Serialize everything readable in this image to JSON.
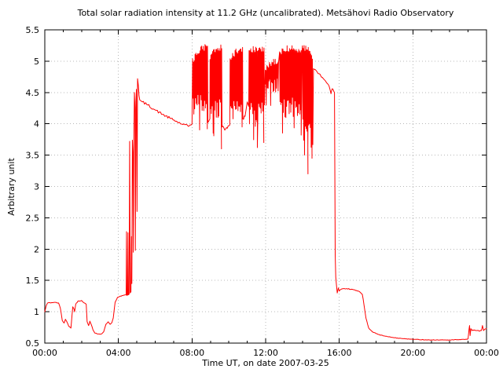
{
  "title": "Total solar radiation intensity at 11.2 GHz (uncalibrated). Metsähovi Radio Observatory",
  "xlabel": "Time UT, on date 2007-03-25",
  "ylabel": "Arbitrary unit",
  "colors": {
    "line": "#ff0000",
    "axis": "#000000",
    "grid": "#b8b8b8",
    "background": "#ffffff",
    "text": "#000000"
  },
  "chart_data": {
    "type": "line",
    "title": "Total solar radiation intensity at 11.2 GHz (uncalibrated). Metsähovi Radio Observatory",
    "xlabel": "Time UT, on date 2007-03-25",
    "ylabel": "Arbitrary unit",
    "grid": true,
    "legend": false,
    "xlim_hours": [
      0,
      24
    ],
    "ylim": [
      0.5,
      5.5
    ],
    "x_ticks": [
      {
        "t": 0,
        "label": "00:00"
      },
      {
        "t": 4,
        "label": "04:00"
      },
      {
        "t": 8,
        "label": "08:00"
      },
      {
        "t": 12,
        "label": "12:00"
      },
      {
        "t": 16,
        "label": "16:00"
      },
      {
        "t": 20,
        "label": "20:00"
      },
      {
        "t": 24,
        "label": "00:00"
      }
    ],
    "x_minor_every_hours": 1,
    "y_ticks": [
      {
        "v": 0.5,
        "label": "0.5"
      },
      {
        "v": 1,
        "label": "1"
      },
      {
        "v": 1.5,
        "label": "1.5"
      },
      {
        "v": 2,
        "label": "2"
      },
      {
        "v": 2.5,
        "label": "2.5"
      },
      {
        "v": 3,
        "label": "3"
      },
      {
        "v": 3.5,
        "label": "3.5"
      },
      {
        "v": 4,
        "label": "4"
      },
      {
        "v": 4.5,
        "label": "4.5"
      },
      {
        "v": 5,
        "label": "5"
      },
      {
        "v": 5.5,
        "label": "5.5"
      }
    ],
    "series_name": "solar radiation intensity",
    "segments": [
      {
        "type": "line",
        "noise": 0.006,
        "pts": [
          [
            0,
            1.0
          ],
          [
            0.08,
            1.1
          ],
          [
            0.15,
            1.14
          ],
          [
            0.5,
            1.15
          ],
          [
            0.75,
            1.14
          ],
          [
            0.85,
            1.05
          ],
          [
            0.95,
            0.86
          ],
          [
            1.05,
            0.82
          ],
          [
            1.12,
            0.88
          ],
          [
            1.2,
            0.84
          ],
          [
            1.3,
            0.77
          ],
          [
            1.42,
            0.74
          ],
          [
            1.48,
            0.95
          ],
          [
            1.52,
            1.08
          ],
          [
            1.58,
            1.05
          ],
          [
            1.62,
            1.0
          ],
          [
            1.68,
            1.12
          ],
          [
            1.8,
            1.17
          ],
          [
            2.0,
            1.18
          ],
          [
            2.15,
            1.14
          ],
          [
            2.25,
            1.12
          ],
          [
            2.3,
            0.84
          ],
          [
            2.38,
            0.78
          ],
          [
            2.45,
            0.85
          ],
          [
            2.52,
            0.8
          ],
          [
            2.62,
            0.71
          ],
          [
            2.72,
            0.66
          ],
          [
            2.9,
            0.645
          ],
          [
            3.1,
            0.65
          ],
          [
            3.2,
            0.68
          ],
          [
            3.32,
            0.8
          ],
          [
            3.45,
            0.84
          ],
          [
            3.55,
            0.8
          ],
          [
            3.65,
            0.83
          ],
          [
            3.72,
            0.9
          ],
          [
            3.82,
            1.15
          ],
          [
            3.95,
            1.23
          ],
          [
            4.1,
            1.25
          ],
          [
            4.25,
            1.26
          ],
          [
            4.42,
            1.27
          ]
        ]
      },
      {
        "type": "line",
        "noise": 0,
        "pts": [
          [
            4.44,
            2.28
          ],
          [
            4.46,
            1.26
          ],
          [
            4.5,
            1.27
          ],
          [
            4.52,
            2.26
          ],
          [
            4.54,
            1.27
          ],
          [
            4.58,
            1.28
          ],
          [
            4.61,
            3.72
          ],
          [
            4.64,
            1.3
          ],
          [
            4.68,
            1.32
          ],
          [
            4.71,
            2.2
          ],
          [
            4.73,
            1.45
          ],
          [
            4.76,
            3.74
          ],
          [
            4.79,
            3.55
          ],
          [
            4.81,
            1.95
          ],
          [
            4.84,
            3.8
          ],
          [
            4.87,
            4.5
          ],
          [
            4.9,
            4.25
          ],
          [
            4.92,
            1.98
          ],
          [
            4.95,
            4.35
          ],
          [
            4.98,
            4.55
          ],
          [
            5.01,
            2.6
          ],
          [
            5.04,
            4.72
          ],
          [
            5.08,
            4.62
          ],
          [
            5.12,
            4.45
          ],
          [
            5.16,
            4.38
          ]
        ]
      },
      {
        "type": "line",
        "noise": 0.02,
        "pts": [
          [
            5.3,
            4.35
          ],
          [
            5.6,
            4.3
          ],
          [
            6.0,
            4.22
          ],
          [
            6.4,
            4.15
          ],
          [
            6.8,
            4.09
          ],
          [
            7.2,
            4.03
          ],
          [
            7.5,
            3.99
          ],
          [
            7.8,
            3.96
          ],
          [
            8.0,
            4.0
          ]
        ]
      },
      {
        "type": "burst",
        "t": [
          8.03,
          8.85
        ],
        "top": [
          5.05,
          5.32,
          5.28
        ],
        "bot": [
          4.2,
          4.5
        ],
        "deep": [
          [
            8.83,
            3.92
          ]
        ]
      },
      {
        "type": "line",
        "noise": 0.02,
        "pts": [
          [
            8.86,
            4.02
          ],
          [
            8.92,
            4.05
          ],
          [
            8.97,
            4.08
          ]
        ]
      },
      {
        "type": "burst",
        "t": [
          8.98,
          9.62
        ],
        "top": [
          5.1,
          5.3,
          5.26
        ],
        "bot": [
          4.05,
          4.4
        ],
        "deep": [
          [
            9.15,
            3.85
          ],
          [
            9.6,
            3.6
          ]
        ]
      },
      {
        "type": "line",
        "noise": 0.03,
        "pts": [
          [
            9.63,
            3.95
          ],
          [
            9.78,
            3.9
          ],
          [
            9.92,
            3.93
          ],
          [
            10.05,
            3.98
          ]
        ]
      },
      {
        "type": "burst",
        "t": [
          10.07,
          10.75
        ],
        "top": [
          5.08,
          5.26,
          5.22
        ],
        "bot": [
          4.15,
          4.45
        ],
        "deep": [
          [
            10.72,
            3.95
          ]
        ]
      },
      {
        "type": "line",
        "noise": 0.025,
        "pts": [
          [
            10.76,
            4.08
          ],
          [
            10.88,
            4.12
          ],
          [
            11.0,
            4.35
          ],
          [
            11.08,
            4.28
          ]
        ]
      },
      {
        "type": "burst",
        "t": [
          11.1,
          11.95
        ],
        "top": [
          5.18,
          5.33,
          5.24
        ],
        "bot": [
          3.95,
          4.35
        ],
        "deep": [
          [
            11.55,
            3.62
          ],
          [
            11.9,
            3.7
          ]
        ]
      },
      {
        "type": "burst",
        "t": [
          11.98,
          12.72
        ],
        "top": [
          4.9,
          5.12,
          5.0
        ],
        "bot": [
          4.5,
          4.75
        ],
        "deep": [
          [
            12.03,
            4.3
          ]
        ]
      },
      {
        "type": "burst",
        "t": [
          12.76,
          13.98
        ],
        "top": [
          5.18,
          5.34,
          5.22
        ],
        "bot": [
          4.1,
          4.45
        ],
        "deep": [
          [
            13.1,
            4.1
          ],
          [
            13.93,
            3.82
          ]
        ]
      },
      {
        "type": "burst",
        "t": [
          14.0,
          14.58
        ],
        "top": [
          5.25,
          5.28,
          5.1
        ],
        "bot": [
          3.6,
          4.15
        ],
        "deep": [
          [
            14.3,
            3.2
          ],
          [
            14.52,
            3.45
          ]
        ]
      },
      {
        "type": "line",
        "noise": 0.012,
        "pts": [
          [
            14.6,
            4.88
          ],
          [
            14.9,
            4.8
          ],
          [
            15.2,
            4.7
          ],
          [
            15.45,
            4.6
          ],
          [
            15.55,
            4.48
          ],
          [
            15.62,
            4.56
          ],
          [
            15.7,
            4.52
          ]
        ]
      },
      {
        "type": "line",
        "noise": 0.006,
        "pts": [
          [
            15.74,
            4.5
          ],
          [
            15.78,
            1.9
          ],
          [
            15.81,
            1.55
          ],
          [
            15.85,
            1.42
          ],
          [
            15.89,
            1.3
          ],
          [
            15.95,
            1.38
          ],
          [
            16.0,
            1.33
          ],
          [
            16.1,
            1.36
          ],
          [
            16.4,
            1.37
          ],
          [
            16.8,
            1.35
          ],
          [
            17.1,
            1.32
          ],
          [
            17.25,
            1.28
          ]
        ]
      },
      {
        "type": "line",
        "noise": 0.004,
        "pts": [
          [
            17.3,
            1.2
          ],
          [
            17.45,
            0.9
          ],
          [
            17.6,
            0.74
          ],
          [
            17.8,
            0.68
          ],
          [
            18.1,
            0.64
          ],
          [
            18.5,
            0.61
          ],
          [
            19.0,
            0.585
          ],
          [
            19.5,
            0.57
          ],
          [
            20.0,
            0.56
          ],
          [
            21.0,
            0.55
          ],
          [
            22.0,
            0.55
          ],
          [
            22.6,
            0.555
          ],
          [
            22.95,
            0.56
          ]
        ]
      },
      {
        "type": "line",
        "noise": 0.008,
        "pts": [
          [
            23.0,
            0.57
          ],
          [
            23.05,
            0.72
          ],
          [
            23.08,
            0.78
          ],
          [
            23.11,
            0.62
          ],
          [
            23.15,
            0.73
          ],
          [
            23.22,
            0.7
          ],
          [
            23.35,
            0.71
          ],
          [
            23.5,
            0.7
          ],
          [
            23.62,
            0.69
          ],
          [
            23.72,
            0.7
          ],
          [
            23.78,
            0.78
          ],
          [
            23.84,
            0.7
          ],
          [
            23.9,
            0.72
          ],
          [
            24.0,
            0.73
          ]
        ]
      }
    ]
  }
}
